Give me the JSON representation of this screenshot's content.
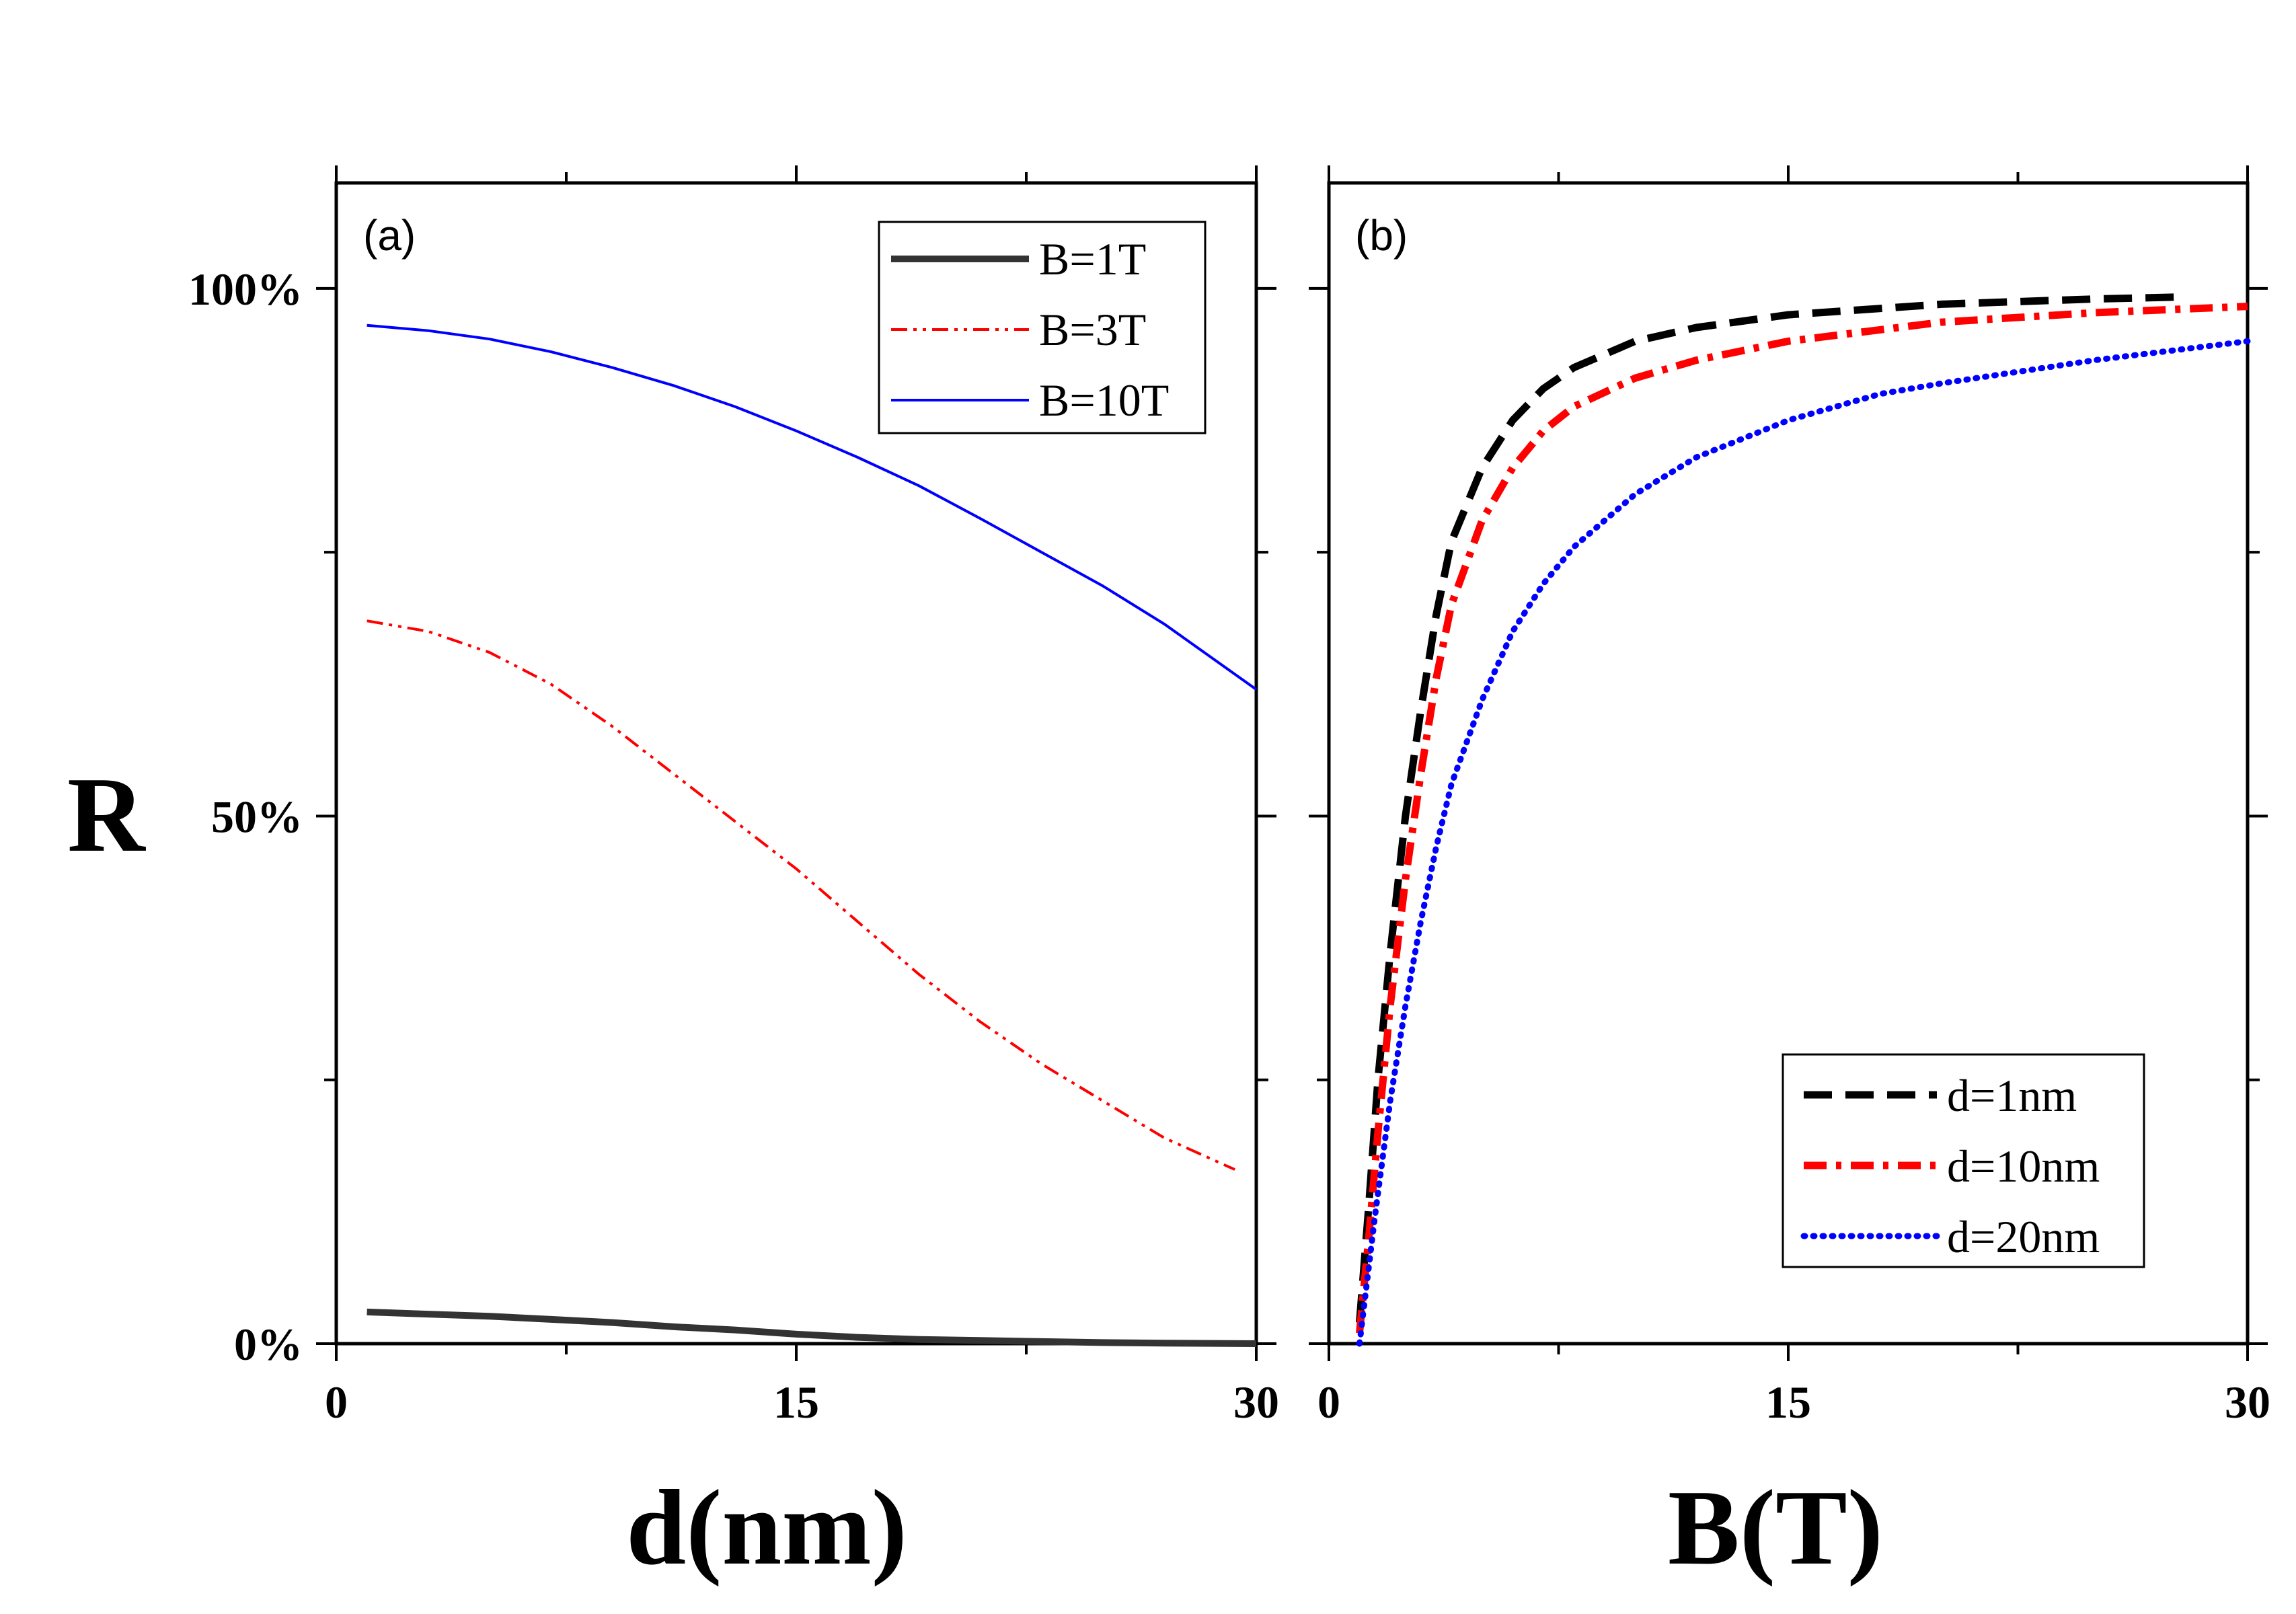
{
  "ylabel": "R",
  "chart_data": [
    {
      "type": "line",
      "panel_label": "(a)",
      "xlabel": "d(nm)",
      "ylabel": "R",
      "xlim": [
        0,
        30
      ],
      "ylim": [
        0,
        110
      ],
      "xticks": [
        0,
        15,
        30
      ],
      "xtick_labels": [
        "0",
        "15",
        "30"
      ],
      "yticks": [
        0,
        50,
        100
      ],
      "ytick_labels": [
        "0%",
        "50%",
        "100%"
      ],
      "legend_position": "top-right",
      "series": [
        {
          "name": "B=1T",
          "color": "#333333",
          "style": "solid-thick",
          "x": [
            1,
            3,
            5,
            7,
            9,
            11,
            13,
            15,
            17,
            19,
            21,
            23,
            25,
            27,
            30
          ],
          "y": [
            3.0,
            2.8,
            2.6,
            2.3,
            2.0,
            1.6,
            1.3,
            0.9,
            0.6,
            0.4,
            0.3,
            0.2,
            0.1,
            0.05,
            0.0
          ]
        },
        {
          "name": "B=3T",
          "color": "#ff0000",
          "style": "dash-dot-dot",
          "x": [
            1,
            3,
            5,
            7,
            9,
            11,
            13,
            15,
            17,
            19,
            21,
            23,
            25,
            27,
            29.3
          ],
          "y": [
            68.5,
            67.5,
            65.5,
            62.5,
            58.5,
            54.0,
            49.5,
            45.0,
            40.0,
            35.0,
            30.5,
            26.5,
            23.0,
            19.5,
            16.5
          ]
        },
        {
          "name": "B=10T",
          "color": "#0000ff",
          "style": "solid",
          "x": [
            1,
            3,
            5,
            7,
            9,
            11,
            13,
            15,
            17,
            19,
            21,
            23,
            25,
            27,
            30
          ],
          "y": [
            96.5,
            96.0,
            95.2,
            94.0,
            92.5,
            90.8,
            88.8,
            86.5,
            84.0,
            81.3,
            78.2,
            75.0,
            71.8,
            68.2,
            62.0
          ]
        }
      ]
    },
    {
      "type": "line",
      "panel_label": "(b)",
      "xlabel": "B(T)",
      "xlim": [
        0,
        30
      ],
      "ylim": [
        0,
        110
      ],
      "xticks": [
        0,
        15,
        30
      ],
      "xtick_labels": [
        "0",
        "15",
        "30"
      ],
      "yticks": [
        0,
        50,
        100
      ],
      "legend_position": "bottom-right",
      "series": [
        {
          "name": "d=1nm",
          "color": "#000000",
          "style": "dash",
          "x": [
            1,
            1.3,
            1.6,
            2,
            2.5,
            3,
            3.5,
            4,
            5,
            6,
            7,
            8,
            10,
            12,
            15,
            20,
            25,
            28
          ],
          "y": [
            2,
            13,
            25,
            37,
            50,
            60,
            69,
            76,
            83,
            87.5,
            90.5,
            92.5,
            95,
            96.3,
            97.5,
            98.5,
            99,
            99.2
          ]
        },
        {
          "name": "d=10nm",
          "color": "#ff0000",
          "style": "dash-dot",
          "x": [
            1,
            1.3,
            1.6,
            2,
            2.5,
            3,
            3.5,
            4,
            5,
            6,
            7,
            8,
            10,
            12,
            15,
            20,
            25,
            30
          ],
          "y": [
            1,
            10,
            20,
            32,
            44,
            54,
            63,
            70,
            78,
            83,
            86.5,
            88.8,
            91.5,
            93.2,
            95,
            96.8,
            97.7,
            98.3
          ]
        },
        {
          "name": "d=20nm",
          "color": "#0000ff",
          "style": "dot",
          "x": [
            1,
            1.5,
            2,
            2.5,
            3,
            3.5,
            4,
            5,
            6,
            7,
            8,
            10,
            12,
            15,
            18,
            20,
            25,
            30
          ],
          "y": [
            0,
            12,
            23,
            32,
            40,
            47,
            53,
            61,
            67.5,
            72,
            75.5,
            80.5,
            84,
            87.5,
            90,
            91,
            93.2,
            95
          ]
        }
      ]
    }
  ]
}
